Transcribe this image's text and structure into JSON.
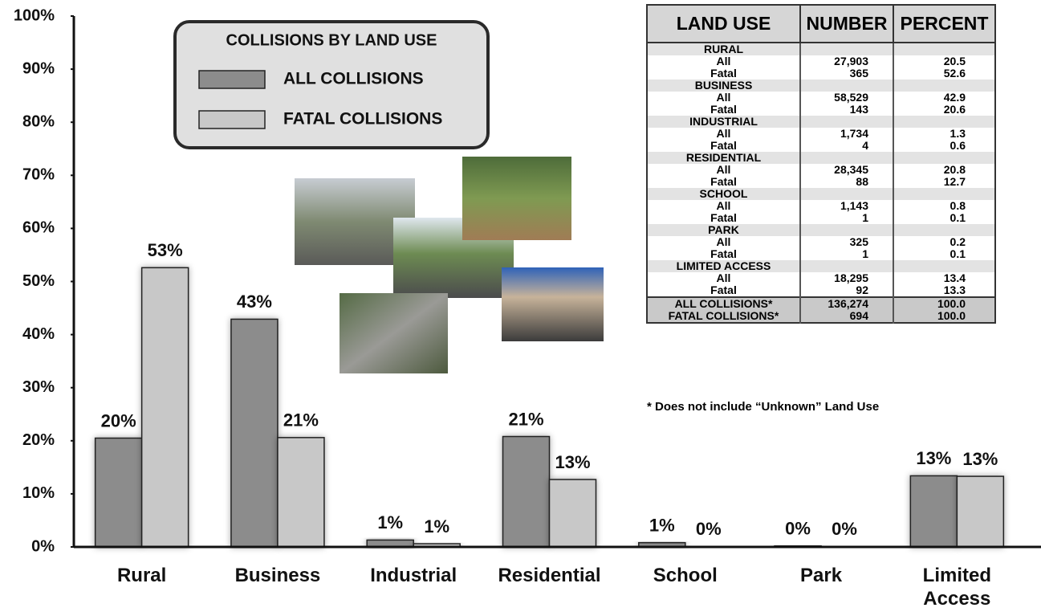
{
  "chart_data": {
    "type": "bar",
    "legend_title": "COLLISIONS BY LAND USE",
    "categories": [
      "Rural",
      "Business",
      "Industrial",
      "Residential",
      "School",
      "Park",
      "Limited Access"
    ],
    "series": [
      {
        "name": "ALL COLLISIONS",
        "color": "#8c8c8c",
        "values": [
          20.5,
          42.9,
          1.3,
          20.8,
          0.8,
          0.2,
          13.4
        ],
        "value_labels": [
          "20%",
          "43%",
          "1%",
          "21%",
          "1%",
          "0%",
          "13%"
        ]
      },
      {
        "name": "FATAL COLLISIONS",
        "color": "#c8c8c8",
        "values": [
          52.6,
          20.6,
          0.6,
          12.7,
          0.1,
          0.1,
          13.3
        ],
        "value_labels": [
          "53%",
          "21%",
          "1%",
          "13%",
          "0%",
          "0%",
          "13%"
        ]
      }
    ],
    "ylim": [
      0,
      100
    ],
    "yticks": [
      {
        "value": 0,
        "label": "0%"
      },
      {
        "value": 10,
        "label": "10%"
      },
      {
        "value": 20,
        "label": "20%"
      },
      {
        "value": 30,
        "label": "30%"
      },
      {
        "value": 40,
        "label": "40%"
      },
      {
        "value": 50,
        "label": "50%"
      },
      {
        "value": 60,
        "label": "60%"
      },
      {
        "value": 70,
        "label": "70%"
      },
      {
        "value": 80,
        "label": "80%"
      },
      {
        "value": 90,
        "label": "90%"
      },
      {
        "value": 100,
        "label": "100%"
      }
    ],
    "grid": false
  },
  "table": {
    "header": [
      "LAND USE",
      "NUMBER",
      "PERCENT"
    ],
    "groups": [
      {
        "name": "RURAL",
        "rows": [
          [
            "All",
            "27,903",
            "20.5"
          ],
          [
            "Fatal",
            "365",
            "52.6"
          ]
        ]
      },
      {
        "name": "BUSINESS",
        "rows": [
          [
            "All",
            "58,529",
            "42.9"
          ],
          [
            "Fatal",
            "143",
            "20.6"
          ]
        ]
      },
      {
        "name": "INDUSTRIAL",
        "rows": [
          [
            "All",
            "1,734",
            "1.3"
          ],
          [
            "Fatal",
            "4",
            "0.6"
          ]
        ]
      },
      {
        "name": "RESIDENTIAL",
        "rows": [
          [
            "All",
            "28,345",
            "20.8"
          ],
          [
            "Fatal",
            "88",
            "12.7"
          ]
        ]
      },
      {
        "name": "SCHOOL",
        "rows": [
          [
            "All",
            "1,143",
            "0.8"
          ],
          [
            "Fatal",
            "1",
            "0.1"
          ]
        ]
      },
      {
        "name": "PARK",
        "rows": [
          [
            "All",
            "325",
            "0.2"
          ],
          [
            "Fatal",
            "1",
            "0.1"
          ]
        ]
      },
      {
        "name": "LIMITED ACCESS",
        "rows": [
          [
            "All",
            "18,295",
            "13.4"
          ],
          [
            "Fatal",
            "92",
            "13.3"
          ]
        ]
      }
    ],
    "totals": [
      [
        "ALL COLLISIONS*",
        "136,274",
        "100.0"
      ],
      [
        "FATAL COLLISIONS*",
        "694",
        "100.0"
      ]
    ],
    "footnote": "* Does not include “Unknown” Land Use"
  }
}
